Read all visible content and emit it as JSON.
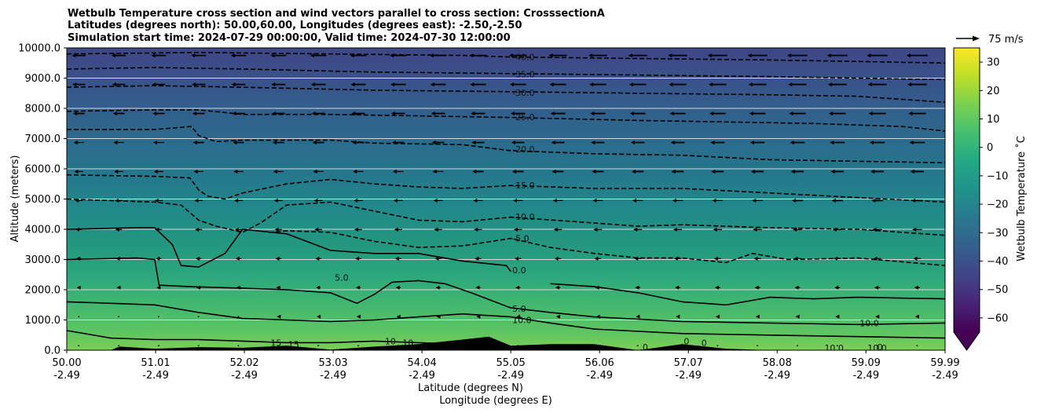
{
  "chart_data": {
    "type": "contour",
    "title_lines": [
      "Wetbulb Temperature cross section and wind vectors parallel to cross section: CrosssectionA",
      "Latitudes (degrees north): 50.00,60.00, Longitudes (degrees east): -2.50,-2.50",
      "Simulation start time: 2024-07-29 00:00:00, Valid time: 2024-07-30 12:00:00"
    ],
    "ylabel": "Altitude (meters)",
    "xlabel_lat": "Latitude (degrees N)",
    "xlabel_lon": "Longitude (degrees E)",
    "ylim": [
      0,
      10000
    ],
    "yticks": [
      "0.0",
      "1000.0",
      "2000.0",
      "3000.0",
      "4000.0",
      "5000.0",
      "6000.0",
      "7000.0",
      "8000.0",
      "9000.0",
      "10000.0"
    ],
    "xticks_lat": [
      "50.00",
      "51.01",
      "52.02",
      "53.03",
      "54.04",
      "55.05",
      "56.06",
      "57.07",
      "58.08",
      "59.09",
      "59.99"
    ],
    "xticks_lon": [
      "-2.49",
      "-2.49",
      "-2.49",
      "-2.49",
      "-2.49",
      "-2.49",
      "-2.49",
      "-2.49",
      "-2.49",
      "-2.49",
      "-2.49"
    ],
    "grid": "horizontal",
    "colorbar": {
      "label": "Wetbulb Temperature $^\\circ$C",
      "label_text": "Wetbulb Temperature ˚C",
      "range": [
        -65,
        35
      ],
      "ticks": [
        "30",
        "20",
        "10",
        "0",
        "−10",
        "−20",
        "−30",
        "−40",
        "−50",
        "−60"
      ],
      "colormap": "viridis",
      "extend": "min"
    },
    "quiver_key": "75 m/s",
    "contour_levels": [
      -40,
      -35,
      -30,
      -25,
      -20,
      -15,
      -10,
      -5,
      0,
      5,
      10,
      15
    ],
    "contour_label_texts": [
      "-40.0",
      "-35.0",
      "-30.0",
      "-25.0",
      "-20.0",
      "-15.0",
      "-10.0",
      "-5.0",
      "0.0",
      "5.0",
      "5.0",
      "10.0",
      "10.0",
      "10.0",
      "10.0",
      "15",
      "15",
      "10",
      "10",
      "0",
      "0",
      "0",
      ".0"
    ],
    "contour_lines": [
      {
        "level": -40,
        "style": "dashed",
        "x": [
          50.0,
          51.5,
          53.0,
          54.5,
          55.05,
          56.5,
          58.0,
          59.0,
          59.99
        ],
        "y": [
          9800,
          9850,
          9800,
          9750,
          9700,
          9650,
          9600,
          9550,
          9500
        ]
      },
      {
        "level": -35,
        "style": "dashed",
        "x": [
          50.0,
          51.0,
          52.0,
          53.5,
          55.05,
          56.5,
          58.0,
          59.0,
          59.99
        ],
        "y": [
          9300,
          9350,
          9300,
          9200,
          9150,
          9100,
          9050,
          9000,
          8950
        ]
      },
      {
        "level": -30,
        "style": "dashed",
        "x": [
          50.0,
          51.0,
          52.0,
          53.5,
          55.05,
          56.5,
          58.0,
          59.0,
          59.99
        ],
        "y": [
          8700,
          8750,
          8700,
          8600,
          8550,
          8500,
          8450,
          8400,
          8200
        ]
      },
      {
        "level": -25,
        "style": "dashed",
        "x": [
          50.0,
          51.0,
          51.5,
          52.0,
          53.0,
          54.0,
          55.05,
          56.5,
          57.5,
          58.5,
          59.5,
          59.99
        ],
        "y": [
          7900,
          7950,
          7950,
          7800,
          7800,
          7750,
          7700,
          7600,
          7550,
          7500,
          7400,
          7250
        ]
      },
      {
        "level": -20,
        "style": "dashed",
        "x": [
          50.0,
          51.0,
          51.42,
          51.5,
          51.7,
          52.0,
          53.0,
          53.5,
          54.5,
          55.05,
          56.0,
          57.0,
          58.0,
          59.0,
          59.99
        ],
        "y": [
          7300,
          7300,
          7400,
          7100,
          6900,
          6950,
          6950,
          6850,
          6800,
          6600,
          6500,
          6450,
          6300,
          6250,
          6200
        ]
      },
      {
        "level": -15,
        "style": "dashed",
        "x": [
          50.0,
          51.0,
          51.4,
          51.5,
          51.6,
          51.8,
          52.0,
          52.5,
          53.0,
          53.5,
          54.0,
          54.5,
          55.05,
          56.0,
          57.0,
          58.0,
          59.0,
          59.99
        ],
        "y": [
          5800,
          5750,
          5700,
          5300,
          5100,
          5000,
          5200,
          5500,
          5650,
          5500,
          5400,
          5350,
          5450,
          5350,
          5350,
          5200,
          5050,
          4900
        ]
      },
      {
        "level": -10,
        "style": "dashed",
        "x": [
          50.0,
          51.0,
          51.3,
          51.5,
          51.7,
          52.0,
          52.2,
          52.5,
          53.0,
          53.5,
          54.0,
          54.5,
          55.05,
          55.8,
          56.5,
          57.0,
          58.0,
          59.0,
          59.99
        ],
        "y": [
          5000,
          4900,
          4800,
          4300,
          4100,
          3900,
          4200,
          4800,
          4900,
          4600,
          4300,
          4250,
          4400,
          4250,
          4100,
          4150,
          4050,
          4000,
          3800
        ]
      },
      {
        "level": -5,
        "style": "dashed",
        "x": [
          52.3,
          52.5,
          53.0,
          53.5,
          54.0,
          54.5,
          55.05,
          55.5,
          56.0,
          56.5,
          57.0,
          57.5,
          57.8,
          58.2,
          59.0,
          59.99
        ],
        "y": [
          3900,
          3950,
          3900,
          3600,
          3400,
          3450,
          3700,
          3400,
          3200,
          3050,
          3050,
          2900,
          3200,
          3000,
          3050,
          2800
        ]
      },
      {
        "level": 0,
        "style": "solid",
        "x": [
          50.0,
          50.8,
          51.0,
          51.2,
          51.3,
          51.5,
          51.8,
          52.0,
          52.5,
          53.0,
          53.5,
          54.0,
          54.5,
          55.0,
          55.05
        ],
        "y": [
          4000,
          4050,
          4050,
          3500,
          2800,
          2750,
          3200,
          4000,
          3850,
          3300,
          3200,
          3200,
          2950,
          2800,
          2600
        ]
      },
      {
        "level": 0,
        "style": "solid",
        "x": [
          55.5,
          56.0,
          56.5,
          57.0,
          57.5,
          58.0,
          58.5,
          59.0,
          59.99
        ],
        "y": [
          2200,
          2100,
          1900,
          1600,
          1500,
          1750,
          1700,
          1750,
          1700
        ]
      },
      {
        "level": 5,
        "style": "solid",
        "x": [
          50.0,
          50.8,
          51.0,
          51.05,
          51.4,
          52.0,
          52.5,
          53.0,
          53.3,
          53.5,
          53.7,
          54.0,
          54.3,
          54.6,
          55.05,
          55.5,
          56.0,
          57.0,
          58.0,
          59.0,
          59.99
        ],
        "y": [
          3000,
          3050,
          3000,
          2150,
          2100,
          2050,
          2000,
          1900,
          1550,
          1850,
          2250,
          2300,
          2200,
          1900,
          1400,
          1250,
          1100,
          950,
          900,
          850,
          900
        ]
      },
      {
        "level": 10,
        "style": "solid",
        "x": [
          50.0,
          50.5,
          51.0,
          51.5,
          52.0,
          52.5,
          53.0,
          53.5,
          54.0,
          54.5,
          55.05,
          55.5,
          56.0,
          57.0,
          58.0,
          59.0,
          59.99
        ],
        "y": [
          1600,
          1550,
          1500,
          1250,
          1050,
          1000,
          950,
          1000,
          1100,
          1200,
          1100,
          900,
          700,
          550,
          500,
          450,
          400
        ]
      },
      {
        "level": 15,
        "style": "solid",
        "x": [
          50.0,
          50.5,
          51.0,
          51.5,
          52.0,
          52.5,
          53.0,
          53.5,
          54.0,
          54.5
        ],
        "y": [
          650,
          400,
          350,
          350,
          300,
          250,
          250,
          300,
          250,
          200
        ]
      }
    ],
    "wind_vectors": "u-component along section, generally westward aloft, increasing with altitude and northward",
    "terrain_profile": {
      "x": [
        50.0,
        50.5,
        50.6,
        51.0,
        51.5,
        52.0,
        52.5,
        53.0,
        53.5,
        54.0,
        54.5,
        54.8,
        55.05,
        55.5,
        56.0,
        56.5,
        57.0,
        57.5,
        58.0,
        59.0,
        59.99
      ],
      "y": [
        0,
        0,
        120,
        50,
        100,
        80,
        150,
        20,
        120,
        200,
        350,
        450,
        150,
        200,
        200,
        0,
        200,
        50,
        0,
        0,
        0
      ]
    }
  }
}
